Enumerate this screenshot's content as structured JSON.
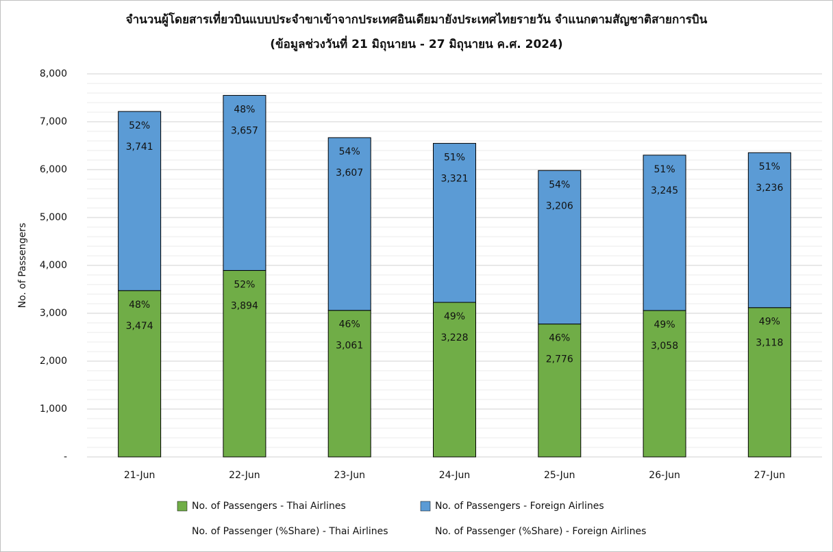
{
  "chart_data": {
    "type": "stacked_bar",
    "title": "จำนวนผู้โดยสารเที่ยวบินแบบประจำขาเข้าจากประเทศอินเดียมายังประเทศไทยรายวัน  จำแนกตามสัญชาติสายการบิน",
    "subtitle": "(ข้อมูลช่วงวันที่ 21 มิถุนายน - 27 มิถุนายน ค.ศ. 2024)",
    "y_label": "No. of Passengers",
    "categories": [
      "21-Jun",
      "22-Jun",
      "23-Jun",
      "24-Jun",
      "25-Jun",
      "26-Jun",
      "27-Jun"
    ],
    "series": [
      {
        "name": "No. of Passengers - Thai Airlines",
        "color": "#70ad47",
        "values": [
          3474,
          3894,
          3061,
          3228,
          2776,
          3058,
          3118
        ],
        "value_labels": [
          "3,474",
          "3,894",
          "3,061",
          "3,228",
          "2,776",
          "3,058",
          "3,118"
        ]
      },
      {
        "name": "No. of Passengers - Foreign Airlines",
        "color": "#5b9bd5",
        "values": [
          3741,
          3657,
          3607,
          3321,
          3206,
          3245,
          3236
        ],
        "value_labels": [
          "3,741",
          "3,657",
          "3,607",
          "3,321",
          "3,206",
          "3,245",
          "3,236"
        ]
      },
      {
        "name": "No. of Passenger (%Share) - Thai Airlines",
        "values": [
          48,
          52,
          46,
          49,
          46,
          49,
          49
        ],
        "value_labels": [
          "48%",
          "52%",
          "46%",
          "49%",
          "46%",
          "49%",
          "49%"
        ]
      },
      {
        "name": "No. of Passenger (%Share) - Foreign Airlines",
        "values": [
          52,
          48,
          54,
          51,
          54,
          51,
          51
        ],
        "value_labels": [
          "52%",
          "48%",
          "54%",
          "51%",
          "54%",
          "51%",
          "51%"
        ]
      }
    ],
    "ylim": [
      0,
      8000
    ],
    "yticks": [
      {
        "value": 0,
        "label": "-"
      },
      {
        "value": 1000,
        "label": "1,000"
      },
      {
        "value": 2000,
        "label": "2,000"
      },
      {
        "value": 3000,
        "label": "3,000"
      },
      {
        "value": 4000,
        "label": "4,000"
      },
      {
        "value": 5000,
        "label": "5,000"
      },
      {
        "value": 6000,
        "label": "6,000"
      },
      {
        "value": 7000,
        "label": "7,000"
      },
      {
        "value": 8000,
        "label": "8,000"
      }
    ],
    "grid": true
  }
}
